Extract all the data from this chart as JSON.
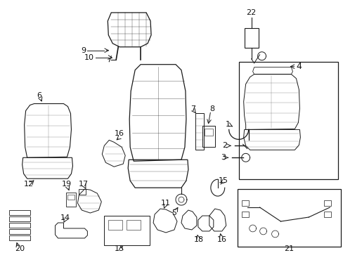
{
  "bg_color": "#ffffff",
  "line_color": "#1a1a1a",
  "text_color": "#111111",
  "font_size": 8
}
